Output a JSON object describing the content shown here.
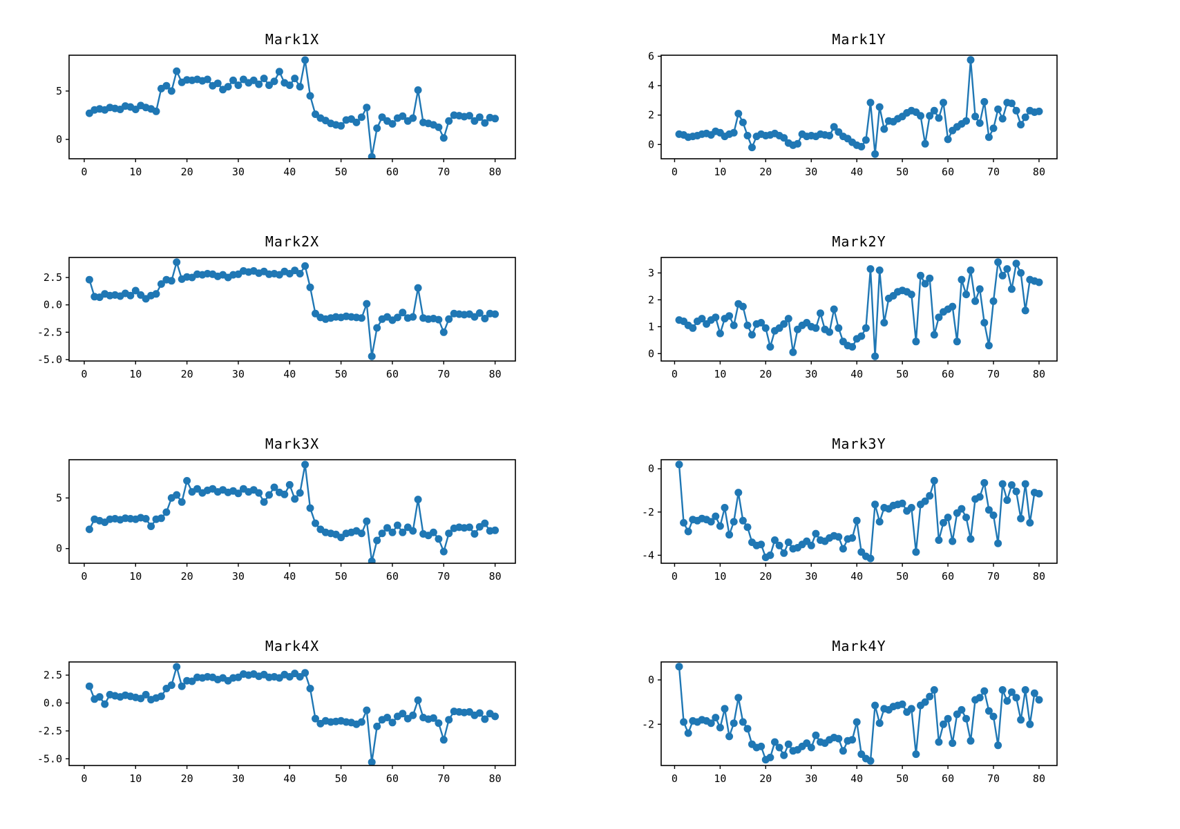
{
  "figure": {
    "background": "#ffffff",
    "line_color": "#1f77b4",
    "marker": "circle",
    "marker_radius": 5.5,
    "line_width": 2.4
  },
  "chart_data": [
    {
      "type": "line",
      "title": "Mark1X",
      "xlabel": "",
      "ylabel": "",
      "x_start": 1,
      "x_step": 1,
      "grid": false,
      "legend": "none",
      "xlim": [
        -2.95,
        83.95
      ],
      "ylim": [
        -2.0,
        8.7
      ],
      "x_ticks": [
        0,
        10,
        20,
        30,
        40,
        50,
        60,
        70,
        80
      ],
      "y_ticks": [
        0,
        5
      ],
      "y_tick_labels": [
        "0",
        "5"
      ],
      "values": [
        2.7,
        3.05,
        3.15,
        3.05,
        3.3,
        3.2,
        3.1,
        3.45,
        3.35,
        3.1,
        3.5,
        3.3,
        3.15,
        2.9,
        5.25,
        5.55,
        5.0,
        7.05,
        5.9,
        6.15,
        6.1,
        6.2,
        6.05,
        6.2,
        5.55,
        5.8,
        5.15,
        5.45,
        6.1,
        5.6,
        6.2,
        5.85,
        6.1,
        5.7,
        6.3,
        5.6,
        6.0,
        7.0,
        5.85,
        5.6,
        6.3,
        5.45,
        8.2,
        4.5,
        2.6,
        2.2,
        1.95,
        1.65,
        1.5,
        1.4,
        2.0,
        2.1,
        1.75,
        2.3,
        3.3,
        -1.8,
        1.15,
        2.3,
        1.9,
        1.6,
        2.2,
        2.4,
        1.9,
        2.2,
        5.1,
        1.75,
        1.65,
        1.5,
        1.25,
        0.15,
        1.9,
        2.5,
        2.45,
        2.35,
        2.45,
        1.9,
        2.3,
        1.7,
        2.25,
        2.15
      ]
    },
    {
      "type": "line",
      "title": "Mark1Y",
      "xlabel": "",
      "ylabel": "",
      "x_start": 1,
      "x_step": 1,
      "grid": false,
      "legend": "none",
      "xlim": [
        -2.95,
        83.95
      ],
      "ylim": [
        -0.97,
        6.07
      ],
      "x_ticks": [
        0,
        10,
        20,
        30,
        40,
        50,
        60,
        70,
        80
      ],
      "y_ticks": [
        0,
        2,
        4,
        6
      ],
      "y_tick_labels": [
        "0",
        "2",
        "4",
        "6"
      ],
      "values": [
        0.7,
        0.65,
        0.5,
        0.55,
        0.6,
        0.7,
        0.75,
        0.65,
        0.9,
        0.8,
        0.55,
        0.7,
        0.8,
        2.1,
        1.5,
        0.6,
        -0.2,
        0.55,
        0.7,
        0.6,
        0.65,
        0.75,
        0.6,
        0.45,
        0.1,
        -0.05,
        0.05,
        0.7,
        0.55,
        0.6,
        0.55,
        0.7,
        0.65,
        0.6,
        1.2,
        0.85,
        0.55,
        0.4,
        0.15,
        -0.05,
        -0.15,
        0.3,
        2.85,
        -0.65,
        2.55,
        1.05,
        1.6,
        1.55,
        1.75,
        1.9,
        2.15,
        2.3,
        2.2,
        1.95,
        0.05,
        1.95,
        2.3,
        1.8,
        2.85,
        0.35,
        0.95,
        1.2,
        1.4,
        1.6,
        5.75,
        1.9,
        1.45,
        2.9,
        0.5,
        1.1,
        2.4,
        1.75,
        2.85,
        2.8,
        2.3,
        1.35,
        1.85,
        2.3,
        2.2,
        2.25
      ]
    },
    {
      "type": "line",
      "title": "Mark2X",
      "xlabel": "",
      "ylabel": "",
      "x_start": 1,
      "x_step": 1,
      "grid": false,
      "legend": "none",
      "xlim": [
        -2.95,
        83.95
      ],
      "ylim": [
        -5.13,
        4.33
      ],
      "x_ticks": [
        0,
        10,
        20,
        30,
        40,
        50,
        60,
        70,
        80
      ],
      "y_ticks": [
        2.5,
        0.0,
        -2.5,
        -5.0
      ],
      "y_tick_labels": [
        "2.5",
        "0.0",
        "-2.5",
        "-5.0"
      ],
      "values": [
        2.3,
        0.75,
        0.7,
        1.0,
        0.85,
        0.9,
        0.8,
        1.05,
        0.85,
        1.3,
        0.9,
        0.55,
        0.85,
        1.0,
        1.9,
        2.3,
        2.2,
        3.9,
        2.35,
        2.55,
        2.5,
        2.8,
        2.75,
        2.85,
        2.8,
        2.6,
        2.75,
        2.5,
        2.75,
        2.8,
        3.1,
        3.0,
        3.1,
        2.9,
        3.05,
        2.8,
        2.85,
        2.75,
        3.05,
        2.85,
        3.15,
        2.85,
        3.55,
        1.6,
        -0.8,
        -1.15,
        -1.3,
        -1.2,
        -1.1,
        -1.15,
        -1.05,
        -1.1,
        -1.15,
        -1.2,
        0.1,
        -4.7,
        -2.1,
        -1.3,
        -1.1,
        -1.4,
        -1.15,
        -0.7,
        -1.2,
        -1.1,
        1.55,
        -1.2,
        -1.3,
        -1.25,
        -1.35,
        -2.5,
        -1.3,
        -0.8,
        -0.85,
        -0.9,
        -0.85,
        -1.1,
        -0.75,
        -1.25,
        -0.8,
        -0.85
      ]
    },
    {
      "type": "line",
      "title": "Mark2Y",
      "xlabel": "",
      "ylabel": "",
      "x_start": 1,
      "x_step": 1,
      "grid": false,
      "legend": "none",
      "xlim": [
        -2.95,
        83.95
      ],
      "ylim": [
        -0.275,
        3.575
      ],
      "x_ticks": [
        0,
        10,
        20,
        30,
        40,
        50,
        60,
        70,
        80
      ],
      "y_ticks": [
        0,
        1,
        2,
        3
      ],
      "y_tick_labels": [
        "0",
        "1",
        "2",
        "3"
      ],
      "values": [
        1.25,
        1.2,
        1.05,
        0.95,
        1.2,
        1.3,
        1.1,
        1.25,
        1.35,
        0.75,
        1.3,
        1.4,
        1.05,
        1.85,
        1.75,
        1.05,
        0.7,
        1.1,
        1.15,
        0.95,
        0.25,
        0.85,
        0.95,
        1.1,
        1.3,
        0.05,
        0.9,
        1.05,
        1.15,
        1.0,
        0.95,
        1.5,
        0.9,
        0.8,
        1.65,
        0.95,
        0.45,
        0.3,
        0.25,
        0.55,
        0.65,
        0.95,
        3.15,
        -0.1,
        3.1,
        1.15,
        2.05,
        2.15,
        2.3,
        2.35,
        2.3,
        2.2,
        0.45,
        2.9,
        2.6,
        2.8,
        0.7,
        1.35,
        1.55,
        1.65,
        1.75,
        0.45,
        2.75,
        2.2,
        3.1,
        1.95,
        2.4,
        1.15,
        0.3,
        1.95,
        3.4,
        2.9,
        3.15,
        2.4,
        3.35,
        3.0,
        1.6,
        2.75,
        2.7,
        2.65
      ]
    },
    {
      "type": "line",
      "title": "Mark3X",
      "xlabel": "",
      "ylabel": "",
      "x_start": 1,
      "x_step": 1,
      "grid": false,
      "legend": "none",
      "xlim": [
        -2.95,
        83.95
      ],
      "ylim": [
        -1.45,
        8.78
      ],
      "x_ticks": [
        0,
        10,
        20,
        30,
        40,
        50,
        60,
        70,
        80
      ],
      "y_ticks": [
        0,
        5
      ],
      "y_tick_labels": [
        "0",
        "5"
      ],
      "values": [
        1.9,
        2.9,
        2.75,
        2.6,
        2.9,
        2.95,
        2.85,
        3.0,
        2.95,
        2.9,
        3.05,
        2.95,
        2.2,
        2.9,
        3.0,
        3.6,
        5.0,
        5.3,
        4.6,
        6.7,
        5.6,
        5.9,
        5.5,
        5.75,
        5.9,
        5.6,
        5.8,
        5.55,
        5.7,
        5.45,
        5.9,
        5.6,
        5.8,
        5.5,
        4.6,
        5.3,
        6.05,
        5.55,
        5.35,
        6.3,
        4.9,
        5.5,
        8.3,
        4.0,
        2.5,
        1.9,
        1.6,
        1.5,
        1.4,
        1.1,
        1.5,
        1.6,
        1.75,
        1.5,
        2.7,
        -1.25,
        0.8,
        1.5,
        2.05,
        1.6,
        2.3,
        1.6,
        2.1,
        1.75,
        4.85,
        1.45,
        1.3,
        1.6,
        0.95,
        -0.3,
        1.5,
        2.0,
        2.1,
        2.05,
        2.1,
        1.45,
        2.15,
        2.5,
        1.75,
        1.8
      ]
    },
    {
      "type": "line",
      "title": "Mark3Y",
      "xlabel": "",
      "ylabel": "",
      "x_start": 1,
      "x_step": 1,
      "grid": false,
      "legend": "none",
      "xlim": [
        -2.95,
        83.95
      ],
      "ylim": [
        -4.37,
        0.42
      ],
      "x_ticks": [
        0,
        10,
        20,
        30,
        40,
        50,
        60,
        70,
        80
      ],
      "y_ticks": [
        0,
        -2,
        -4
      ],
      "y_tick_labels": [
        "0",
        "-2",
        "-4"
      ],
      "values": [
        0.2,
        -2.5,
        -2.9,
        -2.35,
        -2.4,
        -2.3,
        -2.35,
        -2.45,
        -2.2,
        -2.65,
        -1.8,
        -3.05,
        -2.45,
        -1.1,
        -2.4,
        -2.7,
        -3.4,
        -3.55,
        -3.5,
        -4.1,
        -4.0,
        -3.3,
        -3.55,
        -3.9,
        -3.4,
        -3.7,
        -3.65,
        -3.5,
        -3.35,
        -3.55,
        -3.0,
        -3.3,
        -3.35,
        -3.2,
        -3.1,
        -3.15,
        -3.7,
        -3.25,
        -3.2,
        -2.4,
        -3.85,
        -4.05,
        -4.15,
        -1.65,
        -2.45,
        -1.8,
        -1.85,
        -1.7,
        -1.65,
        -1.6,
        -1.95,
        -1.8,
        -3.85,
        -1.65,
        -1.5,
        -1.25,
        -0.55,
        -3.3,
        -2.5,
        -2.25,
        -3.35,
        -2.05,
        -1.85,
        -2.25,
        -3.25,
        -1.4,
        -1.3,
        -0.65,
        -1.9,
        -2.15,
        -3.45,
        -0.7,
        -1.45,
        -0.75,
        -1.05,
        -2.3,
        -0.7,
        -2.5,
        -1.1,
        -1.15
      ]
    },
    {
      "type": "line",
      "title": "Mark4X",
      "xlabel": "",
      "ylabel": "",
      "x_start": 1,
      "x_step": 1,
      "grid": false,
      "legend": "none",
      "xlim": [
        -2.95,
        83.95
      ],
      "ylim": [
        -5.6,
        3.68
      ],
      "x_ticks": [
        0,
        10,
        20,
        30,
        40,
        50,
        60,
        70,
        80
      ],
      "y_ticks": [
        2.5,
        0.0,
        -2.5,
        -5.0
      ],
      "y_tick_labels": [
        "2.5",
        "0.0",
        "-2.5",
        "-5.0"
      ],
      "values": [
        1.5,
        0.35,
        0.55,
        -0.1,
        0.75,
        0.65,
        0.55,
        0.7,
        0.6,
        0.5,
        0.4,
        0.75,
        0.3,
        0.45,
        0.6,
        1.3,
        1.6,
        3.25,
        1.5,
        2.0,
        1.95,
        2.3,
        2.25,
        2.35,
        2.3,
        2.1,
        2.25,
        2.0,
        2.25,
        2.3,
        2.6,
        2.5,
        2.6,
        2.4,
        2.55,
        2.3,
        2.35,
        2.25,
        2.55,
        2.35,
        2.65,
        2.35,
        2.7,
        1.3,
        -1.4,
        -1.85,
        -1.6,
        -1.7,
        -1.65,
        -1.6,
        -1.7,
        -1.75,
        -1.9,
        -1.7,
        -0.65,
        -5.3,
        -2.1,
        -1.5,
        -1.3,
        -1.75,
        -1.2,
        -0.95,
        -1.4,
        -1.1,
        0.25,
        -1.3,
        -1.45,
        -1.35,
        -1.8,
        -3.3,
        -1.5,
        -0.75,
        -0.8,
        -0.85,
        -0.8,
        -1.1,
        -0.9,
        -1.45,
        -0.95,
        -1.2
      ]
    },
    {
      "type": "line",
      "title": "Mark4Y",
      "xlabel": "",
      "ylabel": "",
      "x_start": 1,
      "x_step": 1,
      "grid": false,
      "legend": "none",
      "xlim": [
        -2.95,
        83.95
      ],
      "ylim": [
        -3.86,
        0.81
      ],
      "x_ticks": [
        0,
        10,
        20,
        30,
        40,
        50,
        60,
        70,
        80
      ],
      "y_ticks": [
        0,
        -2
      ],
      "y_tick_labels": [
        "0",
        "-2"
      ],
      "values": [
        0.6,
        -1.9,
        -2.4,
        -1.85,
        -1.9,
        -1.8,
        -1.85,
        -1.95,
        -1.7,
        -2.15,
        -1.3,
        -2.55,
        -1.95,
        -0.8,
        -1.9,
        -2.2,
        -2.9,
        -3.05,
        -3.0,
        -3.6,
        -3.5,
        -2.8,
        -3.05,
        -3.4,
        -2.9,
        -3.2,
        -3.15,
        -3.0,
        -2.85,
        -3.05,
        -2.5,
        -2.8,
        -2.85,
        -2.7,
        -2.6,
        -2.65,
        -3.2,
        -2.75,
        -2.7,
        -1.9,
        -3.35,
        -3.55,
        -3.65,
        -1.15,
        -1.95,
        -1.3,
        -1.35,
        -1.2,
        -1.15,
        -1.1,
        -1.45,
        -1.3,
        -3.35,
        -1.15,
        -1.0,
        -0.75,
        -0.45,
        -2.8,
        -2.0,
        -1.75,
        -2.85,
        -1.55,
        -1.35,
        -1.75,
        -2.75,
        -0.9,
        -0.8,
        -0.5,
        -1.4,
        -1.65,
        -2.95,
        -0.45,
        -0.95,
        -0.55,
        -0.8,
        -1.8,
        -0.45,
        -2.0,
        -0.6,
        -0.9
      ]
    }
  ]
}
